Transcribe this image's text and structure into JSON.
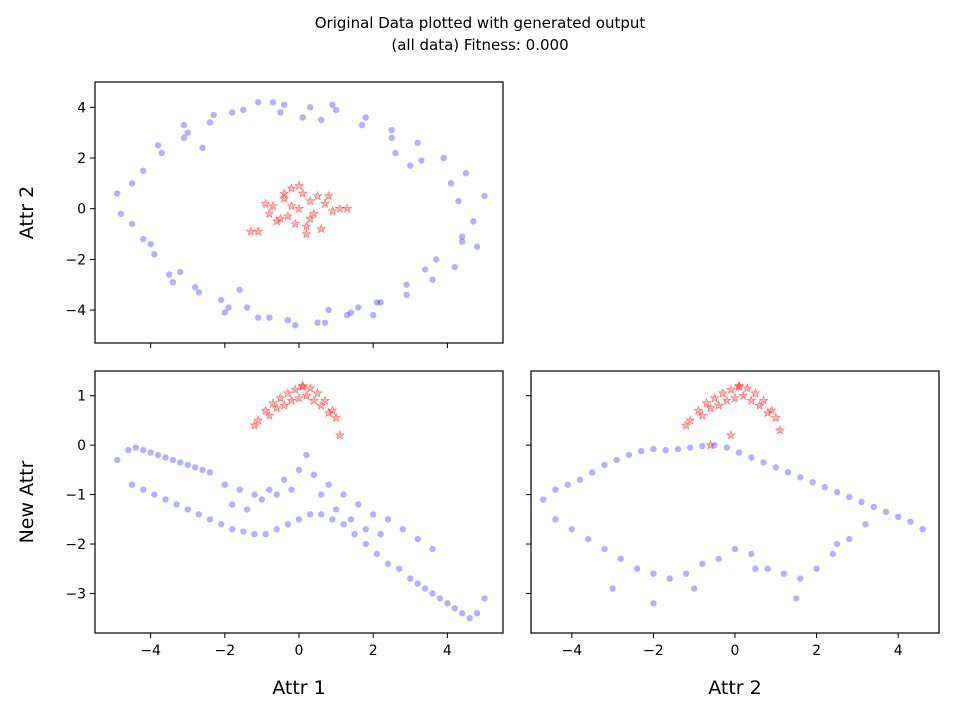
{
  "figure": {
    "title_line1": "Original Data plotted with generated output",
    "title_line2": "(all data) Fitness: 0.000"
  },
  "colors": {
    "original": "#0000ff",
    "generated": "#ff0000"
  },
  "chart_data": [
    {
      "id": "attr1_vs_attr2",
      "type": "scatter",
      "xlabel": "",
      "ylabel": "Attr 2",
      "xlim": [
        -5.5,
        5.5
      ],
      "ylim": [
        -5.3,
        5.0
      ],
      "xticks": [
        -4,
        -2,
        0,
        2,
        4
      ],
      "yticks": [
        -4,
        -2,
        0,
        2,
        4
      ],
      "xticklabels": [
        "",
        "",
        "",
        "",
        ""
      ],
      "yticklabels": [
        "−4",
        "−2",
        "0",
        "2",
        "4"
      ],
      "series": [
        {
          "marker": "circle",
          "color": "#0000ff",
          "alpha": 0.3,
          "x": [
            -4.9,
            -4.5,
            -4.2,
            -3.9,
            -3.7,
            -3.4,
            -3.1,
            -2.8,
            -2.4,
            -2.1,
            -1.8,
            -1.4,
            -1.1,
            -0.8,
            -0.4,
            -0.1,
            0.3,
            0.7,
            1.0,
            1.4,
            1.8,
            2.2,
            2.5,
            2.9,
            3.2,
            3.6,
            3.9,
            4.2,
            4.5,
            4.8,
            5.0,
            4.7,
            4.4,
            4.1,
            3.7,
            3.3,
            2.9,
            2.5,
            2.1,
            1.7,
            1.3,
            0.9,
            0.5,
            0.1,
            -0.3,
            -0.7,
            -1.1,
            -1.5,
            -1.9,
            -2.3,
            -2.7,
            -3.1,
            -3.5,
            -3.8,
            -4.2,
            -4.5,
            -4.8,
            -3.2,
            -2.6,
            -1.6,
            0.6,
            1.6,
            2.6,
            3.4,
            4.3,
            -4.0,
            -3.0,
            3.0,
            4.4,
            -2.0,
            2.0,
            -0.5,
            0.8
          ],
          "y": [
            0.6,
            -0.6,
            1.5,
            -1.8,
            2.2,
            -2.9,
            2.8,
            -3.1,
            3.4,
            -3.6,
            3.8,
            -3.9,
            4.2,
            -4.3,
            4.1,
            -4.6,
            4.0,
            -4.5,
            3.9,
            -4.1,
            3.6,
            -3.7,
            3.1,
            -3.4,
            2.6,
            -2.8,
            2.0,
            -2.3,
            1.4,
            -1.5,
            0.5,
            -0.5,
            -1.1,
            1.0,
            -2.0,
            1.9,
            -3.0,
            2.8,
            -3.7,
            3.3,
            -4.2,
            4.1,
            -4.5,
            3.6,
            -4.4,
            4.2,
            -4.3,
            3.9,
            -3.9,
            3.7,
            -3.3,
            3.3,
            -2.6,
            2.5,
            -1.2,
            1.0,
            -0.2,
            -2.5,
            2.4,
            -3.2,
            3.5,
            -3.9,
            2.2,
            -2.4,
            0.3,
            -1.4,
            3.0,
            1.7,
            -1.3,
            -4.1,
            -4.2,
            3.8,
            -4.0
          ]
        },
        {
          "marker": "star",
          "color": "#ff0000",
          "alpha": 0.3,
          "x": [
            0.0,
            0.3,
            -0.3,
            0.5,
            -0.5,
            0.2,
            -0.2,
            0.7,
            -0.7,
            0.1,
            -0.1,
            0.4,
            -0.4,
            0.9,
            -0.9,
            0.6,
            -0.6,
            1.1,
            -1.1,
            0.0,
            0.2,
            -0.4,
            0.3,
            -0.2,
            0.8,
            -0.8,
            1.3,
            -1.3
          ],
          "y": [
            0.0,
            0.3,
            -0.3,
            0.5,
            -0.4,
            -0.7,
            0.8,
            0.2,
            0.1,
            0.6,
            -0.6,
            -0.2,
            0.4,
            -0.1,
            0.2,
            -0.8,
            -0.5,
            0.0,
            -0.9,
            0.9,
            -1.0,
            0.6,
            -0.4,
            0.1,
            0.5,
            -0.2,
            0.0,
            -0.9
          ]
        }
      ]
    },
    {
      "id": "attr1_vs_newattr",
      "type": "scatter",
      "xlabel": "Attr 1",
      "ylabel": "New Attr",
      "xlim": [
        -5.5,
        5.5
      ],
      "ylim": [
        -3.8,
        1.5
      ],
      "xticks": [
        -4,
        -2,
        0,
        2,
        4
      ],
      "yticks": [
        -3,
        -2,
        -1,
        0,
        1
      ],
      "xticklabels": [
        "−4",
        "−2",
        "0",
        "2",
        "4"
      ],
      "yticklabels": [
        "−3",
        "−2",
        "−1",
        "0",
        "1"
      ],
      "series": [
        {
          "marker": "circle",
          "color": "#0000ff",
          "alpha": 0.3,
          "x": [
            -4.9,
            -4.6,
            -4.4,
            -4.2,
            -4.0,
            -3.8,
            -3.6,
            -3.4,
            -3.2,
            -3.0,
            -2.8,
            -2.6,
            -2.4,
            -4.5,
            -4.2,
            -3.9,
            -3.6,
            -3.3,
            -3.0,
            -2.7,
            -2.4,
            -2.1,
            -1.8,
            -1.5,
            -1.2,
            -0.9,
            -0.6,
            -0.3,
            0.0,
            0.3,
            0.6,
            0.9,
            1.2,
            1.5,
            1.8,
            2.1,
            2.4,
            2.7,
            3.0,
            3.2,
            3.4,
            3.6,
            3.8,
            4.0,
            4.2,
            4.4,
            4.6,
            4.8,
            5.0,
            -2.0,
            -1.6,
            -1.2,
            -0.8,
            -0.4,
            0.0,
            0.4,
            0.8,
            1.2,
            1.6,
            2.0,
            2.4,
            2.8,
            3.2,
            3.6,
            -1.8,
            -1.4,
            -1.0,
            -0.6,
            -0.2,
            0.2,
            0.6,
            1.0,
            1.4,
            1.8,
            2.2
          ],
          "y": [
            -0.3,
            -0.1,
            -0.05,
            -0.1,
            -0.15,
            -0.2,
            -0.25,
            -0.3,
            -0.35,
            -0.4,
            -0.45,
            -0.5,
            -0.55,
            -0.8,
            -0.9,
            -1.0,
            -1.1,
            -1.2,
            -1.3,
            -1.4,
            -1.5,
            -1.6,
            -1.7,
            -1.75,
            -1.8,
            -1.8,
            -1.7,
            -1.6,
            -1.5,
            -1.4,
            -1.4,
            -1.5,
            -1.6,
            -1.8,
            -2.0,
            -2.2,
            -2.4,
            -2.5,
            -2.7,
            -2.8,
            -2.9,
            -3.0,
            -3.1,
            -3.2,
            -3.3,
            -3.4,
            -3.5,
            -3.4,
            -3.1,
            -0.8,
            -0.9,
            -1.0,
            -0.9,
            -0.7,
            -0.5,
            -0.6,
            -0.8,
            -1.0,
            -1.2,
            -1.4,
            -1.5,
            -1.7,
            -1.9,
            -2.1,
            -1.2,
            -1.3,
            -1.1,
            -1.0,
            -0.9,
            -0.2,
            -1.0,
            -1.3,
            -1.5,
            -1.7,
            -1.8
          ]
        },
        {
          "marker": "star",
          "color": "#ff0000",
          "alpha": 0.3,
          "x": [
            -1.1,
            -0.9,
            -0.7,
            -0.5,
            -0.3,
            -0.1,
            0.1,
            0.3,
            0.5,
            0.7,
            0.9,
            1.0,
            -0.8,
            -0.4,
            0.0,
            0.4,
            0.8,
            -0.6,
            -0.2,
            0.2,
            0.6,
            0.1,
            -1.2,
            1.1
          ],
          "y": [
            0.5,
            0.7,
            0.85,
            0.95,
            1.05,
            1.12,
            1.18,
            1.15,
            1.05,
            0.9,
            0.7,
            0.55,
            0.6,
            0.8,
            0.95,
            0.9,
            0.65,
            0.75,
            0.9,
            1.0,
            0.8,
            1.2,
            0.4,
            0.2
          ]
        }
      ]
    },
    {
      "id": "attr2_vs_newattr",
      "type": "scatter",
      "xlabel": "Attr 2",
      "ylabel": "",
      "xlim": [
        -5.0,
        5.0
      ],
      "ylim": [
        -3.8,
        1.5
      ],
      "xticks": [
        -4,
        -2,
        0,
        2,
        4
      ],
      "yticks": [
        -3,
        -2,
        -1,
        0,
        1
      ],
      "xticklabels": [
        "−4",
        "−2",
        "0",
        "2",
        "4"
      ],
      "yticklabels": [
        "",
        "",
        "",
        "",
        ""
      ],
      "series": [
        {
          "marker": "circle",
          "color": "#0000ff",
          "alpha": 0.3,
          "x": [
            -4.7,
            -4.4,
            -4.1,
            -3.8,
            -3.5,
            -3.2,
            -2.9,
            -2.6,
            -2.3,
            -2.0,
            -1.7,
            -1.4,
            -1.1,
            -0.8,
            -0.5,
            -0.2,
            0.1,
            0.4,
            0.7,
            1.0,
            1.3,
            1.6,
            1.9,
            2.2,
            2.5,
            2.8,
            3.1,
            3.4,
            3.7,
            4.0,
            4.3,
            4.6,
            -4.4,
            -4.0,
            -3.6,
            -3.2,
            -2.8,
            -2.4,
            -2.0,
            -1.6,
            -1.2,
            -0.8,
            -0.4,
            0.0,
            0.4,
            0.8,
            1.2,
            1.6,
            2.0,
            2.4,
            2.8,
            3.2,
            -3.0,
            -2.0,
            -1.0,
            0.5,
            1.5,
            2.5
          ],
          "y": [
            -1.1,
            -0.9,
            -0.8,
            -0.7,
            -0.55,
            -0.4,
            -0.3,
            -0.2,
            -0.12,
            -0.08,
            -0.1,
            -0.08,
            -0.05,
            -0.02,
            0.0,
            -0.05,
            -0.15,
            -0.25,
            -0.35,
            -0.45,
            -0.55,
            -0.65,
            -0.75,
            -0.85,
            -0.95,
            -1.05,
            -1.15,
            -1.25,
            -1.35,
            -1.45,
            -1.55,
            -1.7,
            -1.5,
            -1.7,
            -1.9,
            -2.1,
            -2.3,
            -2.5,
            -2.6,
            -2.7,
            -2.6,
            -2.4,
            -2.3,
            -2.1,
            -2.2,
            -2.5,
            -2.6,
            -2.7,
            -2.5,
            -2.2,
            -1.9,
            -1.6,
            -2.9,
            -3.2,
            -2.9,
            -2.5,
            -3.1,
            -2.0
          ]
        },
        {
          "marker": "star",
          "color": "#ff0000",
          "alpha": 0.3,
          "x": [
            -1.1,
            -0.9,
            -0.7,
            -0.5,
            -0.3,
            -0.1,
            0.1,
            0.3,
            0.5,
            0.7,
            0.9,
            1.0,
            -0.8,
            -0.4,
            0.0,
            0.4,
            0.8,
            -0.6,
            -0.2,
            0.2,
            0.6,
            0.1,
            -1.2,
            1.1,
            -0.6,
            -0.1
          ],
          "y": [
            0.5,
            0.7,
            0.85,
            0.95,
            1.05,
            1.12,
            1.18,
            1.15,
            1.05,
            0.9,
            0.7,
            0.55,
            0.6,
            0.8,
            0.95,
            0.9,
            0.65,
            0.75,
            0.9,
            1.0,
            0.8,
            1.2,
            0.4,
            0.3,
            0.0,
            0.2
          ]
        }
      ]
    }
  ]
}
